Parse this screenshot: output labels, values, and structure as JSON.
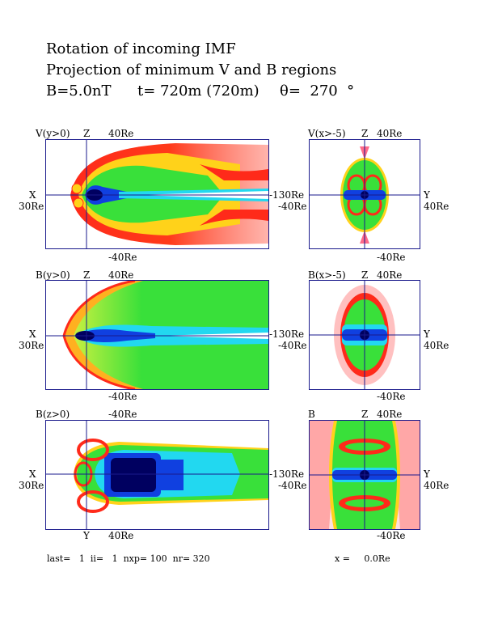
{
  "header": {
    "line1": "Rotation of incoming IMF",
    "line2": "Projection of minimum V and B regions",
    "b_field": "B=5.0nT",
    "time": "t= 720m (720m)",
    "theta": "θ=  270  °"
  },
  "rows": [
    {
      "left": {
        "name": "V(y>0)",
        "axis_top": "Z",
        "top_val": "40Re",
        "left_axis": "X",
        "left_val": "30Re",
        "right_val": "-130Re",
        "bottom_val": "-40Re",
        "bottom_axis": ""
      },
      "right": {
        "name": "V(x>-5)",
        "axis_top": "Z",
        "top_val": "40Re",
        "left_val": "-40Re",
        "right_axis": "Y",
        "right_val": "40Re",
        "bottom_val": "-40Re"
      }
    },
    {
      "left": {
        "name": "B(y>0)",
        "axis_top": "Z",
        "top_val": "40Re",
        "left_axis": "X",
        "left_val": "30Re",
        "right_val": "-130Re",
        "bottom_val": "-40Re",
        "bottom_axis": ""
      },
      "right": {
        "name": "B(x>-5)",
        "axis_top": "Z",
        "top_val": "40Re",
        "left_val": "-40Re",
        "right_axis": "Y",
        "right_val": "40Re",
        "bottom_val": "-40Re"
      }
    },
    {
      "left": {
        "name": "B(z>0)",
        "axis_top": "",
        "top_val": "-40Re",
        "left_axis": "X",
        "left_val": "30Re",
        "right_val": "-130Re",
        "bottom_val": "40Re",
        "bottom_axis": "Y"
      },
      "right": {
        "name": "B",
        "axis_top": "Z",
        "top_val": "40Re",
        "left_val": "-40Re",
        "right_axis": "Y",
        "right_val": "40Re",
        "bottom_val": "-40Re"
      }
    }
  ],
  "footer": {
    "left": "last=   1  ii=   1  nxp= 100  nr= 320",
    "right": "x =     0.0Re"
  },
  "colors": {
    "frame": "#1a1a8c",
    "red": "#ff2a1a",
    "yellow": "#ffd21a",
    "green": "#39e03a",
    "cyan": "#22d8f0",
    "blue": "#1040e0",
    "navy": "#000060"
  }
}
